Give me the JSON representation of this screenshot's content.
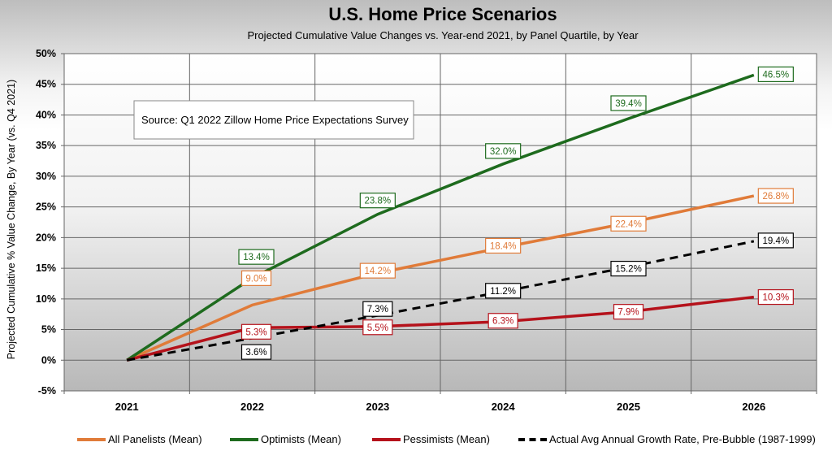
{
  "chart_data": {
    "type": "line",
    "title": "U.S. Home Price Scenarios",
    "subtitle": "Projected Cumulative Value Changes vs. Year-end 2021, by Panel Quartile, by Year",
    "ylabel": "Projected Cumulative % Value Change, By Year  (vs. Q4 2021)",
    "xlabel": "",
    "categories": [
      "2021",
      "2022",
      "2023",
      "2024",
      "2025",
      "2026"
    ],
    "ylim": [
      -5,
      50
    ],
    "yticks": [
      "-5%",
      "0%",
      "5%",
      "10%",
      "15%",
      "20%",
      "25%",
      "30%",
      "35%",
      "40%",
      "45%",
      "50%"
    ],
    "grid": true,
    "annotation": "Source: Q1 2022 Zillow Home Price Expectations Survey",
    "legend_position": "bottom",
    "series": [
      {
        "name": "All Panelists (Mean)",
        "color": "#e07b39",
        "dash": false,
        "values": [
          0,
          9.0,
          14.2,
          18.4,
          22.4,
          26.8
        ],
        "labels": [
          "",
          "9.0%",
          "14.2%",
          "18.4%",
          "22.4%",
          "26.8%"
        ]
      },
      {
        "name": "Optimists (Mean)",
        "color": "#1e6b1e",
        "dash": false,
        "values": [
          0,
          13.4,
          23.8,
          32.0,
          39.4,
          46.5
        ],
        "labels": [
          "",
          "13.4%",
          "23.8%",
          "32.0%",
          "39.4%",
          "46.5%"
        ]
      },
      {
        "name": "Pessimists (Mean)",
        "color": "#b5121b",
        "dash": false,
        "values": [
          0,
          5.3,
          5.5,
          6.3,
          7.9,
          10.3
        ],
        "labels": [
          "",
          "5.3%",
          "5.5%",
          "6.3%",
          "7.9%",
          "10.3%"
        ]
      },
      {
        "name": "Actual Avg Annual Growth Rate, Pre-Bubble (1987-1999)",
        "color": "#000000",
        "dash": true,
        "values": [
          0,
          3.6,
          7.3,
          11.2,
          15.2,
          19.4
        ],
        "labels": [
          "",
          "3.6%",
          "7.3%",
          "11.2%",
          "15.2%",
          "19.4%"
        ]
      }
    ]
  }
}
